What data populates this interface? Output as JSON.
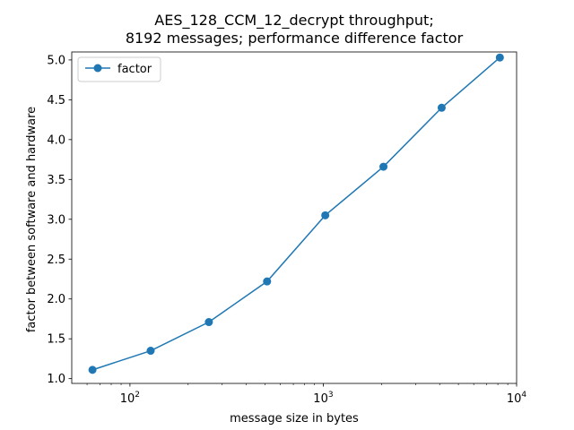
{
  "chart_data": {
    "type": "line",
    "title": [
      "AES_128_CCM_12_decrypt throughput;",
      "8192 messages; performance difference factor"
    ],
    "xlabel": "message size in bytes",
    "ylabel": "factor between software and hardware",
    "xscale": "log",
    "xlim": [
      50,
      10000
    ],
    "ylim": [
      0.94,
      5.1
    ],
    "grid": false,
    "legend_position": "top-left",
    "color": "#1f77b4",
    "series": [
      {
        "name": "factor",
        "x": [
          64,
          128,
          256,
          512,
          1024,
          2048,
          4096,
          8192
        ],
        "y": [
          1.11,
          1.35,
          1.71,
          2.22,
          3.05,
          3.66,
          4.4,
          5.03
        ]
      }
    ],
    "x_ticks": [
      {
        "value": 100,
        "base": "10",
        "exp": "2"
      },
      {
        "value": 1000,
        "base": "10",
        "exp": "3"
      },
      {
        "value": 10000,
        "base": "10",
        "exp": "4"
      }
    ],
    "y_ticks": [
      "1.0",
      "1.5",
      "2.0",
      "2.5",
      "3.0",
      "3.5",
      "4.0",
      "4.5",
      "5.0"
    ]
  }
}
